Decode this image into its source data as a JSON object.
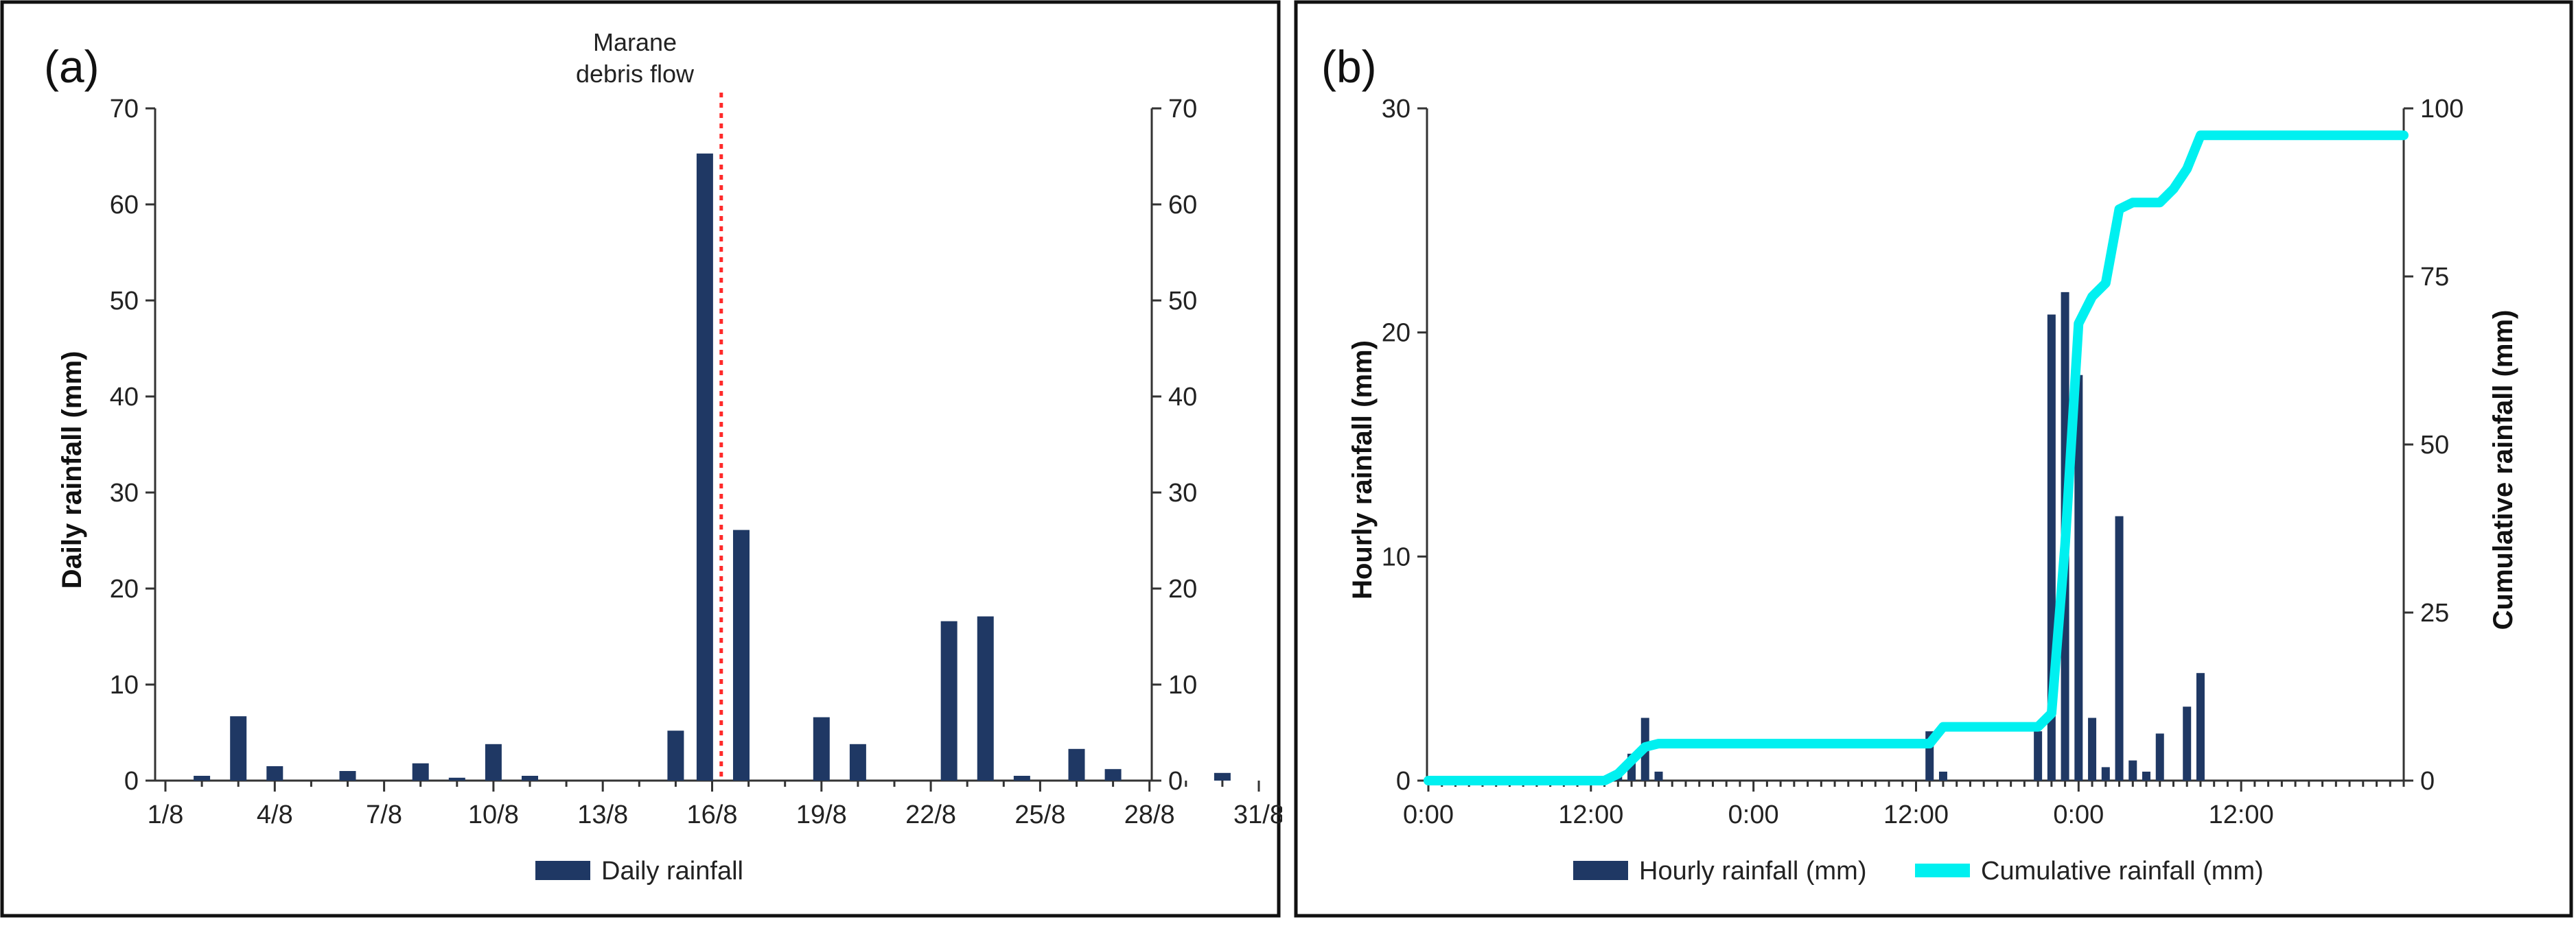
{
  "chart_data": [
    {
      "type": "bar",
      "panel_label": "(a)",
      "title": "",
      "ylabel": "Daily rainfall (mm)",
      "xlabel": "",
      "ylim": [
        0,
        70
      ],
      "yticks": [
        0,
        10,
        20,
        30,
        40,
        50,
        60,
        70
      ],
      "right_axis": {
        "ylim": [
          0,
          70
        ],
        "yticks": [
          0,
          10,
          20,
          30,
          40,
          50,
          60,
          70
        ]
      },
      "x_tick_labels": [
        "1/8",
        "4/8",
        "7/8",
        "10/8",
        "13/8",
        "16/8",
        "19/8",
        "22/8",
        "25/8",
        "28/8",
        "31/8"
      ],
      "x_tick_days": [
        1,
        4,
        7,
        10,
        13,
        16,
        19,
        22,
        25,
        28,
        31
      ],
      "series": [
        {
          "name": "Daily rainfall",
          "color": "#1f3864",
          "days": [
            2,
            3,
            4,
            6,
            8,
            9,
            10,
            11,
            15,
            15.8,
            16.8,
            19,
            20,
            22.5,
            23.5,
            24.5,
            26,
            27,
            30
          ],
          "values": [
            0.5,
            6.7,
            1.5,
            1.0,
            1.8,
            0.3,
            3.8,
            0.5,
            5.2,
            65.3,
            26.1,
            6.6,
            3.8,
            16.6,
            17.1,
            0.5,
            3.3,
            1.2,
            0.8
          ]
        }
      ],
      "annotation": {
        "line1": "Marane",
        "line2": "debris flow",
        "day": 16.25,
        "color": "#ff2a2a",
        "style": "dotted"
      },
      "legend": {
        "position": "bottom",
        "items": [
          "Daily rainfall"
        ]
      }
    },
    {
      "type": "bar+line",
      "panel_label": "(b)",
      "title": "",
      "ylabel": "Hourly rainfall (mm)",
      "y2label": "Cumulative rainfall (mm)",
      "ylim": [
        0,
        30
      ],
      "yticks": [
        0,
        10,
        20,
        30
      ],
      "y2lim": [
        0,
        100
      ],
      "y2ticks": [
        0,
        25,
        50,
        75,
        100
      ],
      "x_unit": "hours",
      "xlim": [
        0,
        72
      ],
      "x_major_ticks": [
        0,
        12,
        24,
        36,
        48,
        60
      ],
      "x_tick_labels": [
        "0:00",
        "12:00",
        "0:00",
        "12:00",
        "0:00",
        "12:00"
      ],
      "series": [
        {
          "name": "Hourly rainfall (mm)",
          "type": "bar",
          "color": "#1f3864",
          "hours": [
            14,
            15,
            16,
            17,
            37,
            38,
            45,
            46,
            47,
            48,
            49,
            50,
            51,
            52,
            53,
            54,
            56,
            57,
            58,
            59
          ],
          "values": [
            0.4,
            1.2,
            2.8,
            0.4,
            2.2,
            0.4,
            2.2,
            20.8,
            21.8,
            18.1,
            2.8,
            0.6,
            11.8,
            0.9,
            0.4,
            2.1,
            3.3,
            4.8,
            0,
            0
          ]
        },
        {
          "name": "Cumulative rainfall (mm)",
          "type": "line",
          "color": "#00f0f0",
          "hours": [
            0,
            13,
            14,
            15,
            16,
            17,
            37,
            38,
            45,
            46,
            47,
            48,
            49,
            50,
            51,
            52,
            53,
            54,
            55,
            56,
            57,
            58,
            72
          ],
          "values": [
            0,
            0,
            1,
            3,
            5,
            5.5,
            5.5,
            8,
            8,
            10,
            35,
            68,
            72,
            74,
            85,
            86,
            86,
            86,
            88,
            91,
            96,
            96,
            96
          ]
        }
      ],
      "legend": {
        "position": "bottom",
        "items": [
          "Hourly rainfall (mm)",
          "Cumulative rainfall (mm)"
        ]
      }
    }
  ]
}
